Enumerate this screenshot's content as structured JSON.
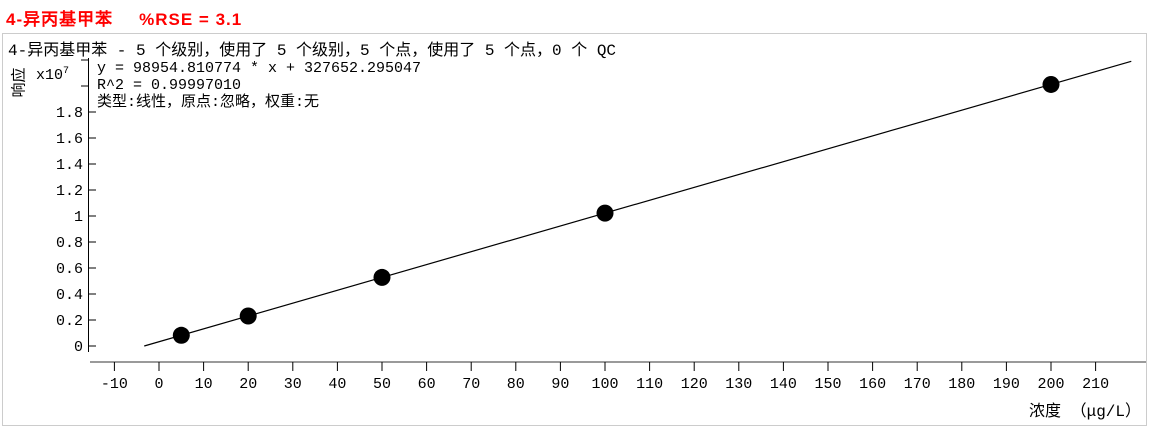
{
  "title": {
    "compound": "4-异丙基甲苯",
    "rse": "%RSE = 3.1"
  },
  "summary_line": "4-异丙基甲苯 - 5 个级别，使用了 5 个级别，5 个点，使用了 5 个点，0 个 QC",
  "fit": {
    "equation": "y = 98954.810774 * x  + 327652.295047",
    "r_squared": "R^2 = 0.99997010",
    "model": "类型:线性，原点:忽略，权重:无"
  },
  "axes": {
    "y_label": "响应",
    "y_scale": {
      "prefix": "x10",
      "exponent": "7"
    },
    "x_label": "浓度 （μg/L）"
  },
  "chart_data": {
    "type": "scatter",
    "title": "4-异丙基甲苯 calibration curve",
    "xlabel": "浓度 （μg/L）",
    "ylabel": "响应 x10^7",
    "x": [
      5,
      20,
      50,
      100,
      200
    ],
    "y": [
      822426,
      2306749,
      5275393,
      10223133,
      20118614
    ],
    "y_unit_factor": 10000000,
    "fit_line": {
      "slope": 98954.810774,
      "intercept": 327652.295047,
      "r_squared": 0.9999701,
      "rse_percent": 3.1,
      "type": "线性",
      "origin": "忽略",
      "weight": "无",
      "x_draw_range": [
        -3.311,
        218.0
      ]
    },
    "x_ticks": [
      -10,
      0,
      10,
      20,
      30,
      40,
      50,
      60,
      70,
      80,
      90,
      100,
      110,
      120,
      130,
      140,
      150,
      160,
      170,
      180,
      190,
      200,
      210
    ],
    "y_ticks_labeled": [
      0,
      0.2,
      0.4,
      0.6,
      0.8,
      1,
      1.2,
      1.4,
      1.6,
      1.8
    ],
    "y_ticks_unlabeled": [
      2.0,
      2.2
    ],
    "xlim": [
      -16,
      222
    ],
    "ylim_units": [
      -0.13,
      2.22
    ],
    "grid": false,
    "legend": "none",
    "levels": 5,
    "levels_used": 5,
    "points": 5,
    "points_used": 5,
    "qc_count": 0
  },
  "colors": {
    "title": "#ff0000",
    "text": "#000000",
    "axis_line": "#9a9a9a",
    "tick": "#000000",
    "border": "#cccccc",
    "marker": "#000000",
    "fit_line": "#000000"
  }
}
